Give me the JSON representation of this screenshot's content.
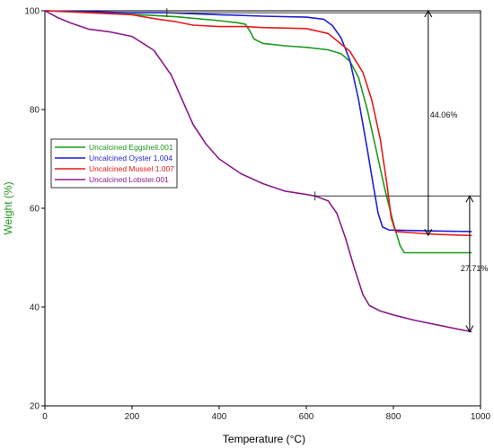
{
  "chart_data": {
    "type": "line",
    "xlabel": "Temperature (°C)",
    "ylabel": "Weight (%)",
    "xlim": [
      0,
      1000
    ],
    "ylim": [
      20,
      100
    ],
    "xticks": [
      "0",
      "200",
      "400",
      "600",
      "800",
      "1000"
    ],
    "yticks": [
      "20",
      "40",
      "60",
      "80",
      "100"
    ],
    "grid": false,
    "legend_position": "left",
    "series": [
      {
        "name": "Uncalcined Eggshell.001",
        "color": "#1a9a1a",
        "points": [
          [
            0,
            100
          ],
          [
            100,
            99.7
          ],
          [
            200,
            99.3
          ],
          [
            300,
            98.8
          ],
          [
            400,
            98
          ],
          [
            440,
            97.6
          ],
          [
            460,
            97.3
          ],
          [
            470,
            96
          ],
          [
            480,
            94.3
          ],
          [
            500,
            93.4
          ],
          [
            550,
            92.9
          ],
          [
            600,
            92.6
          ],
          [
            650,
            92.1
          ],
          [
            680,
            91.3
          ],
          [
            700,
            89.8
          ],
          [
            720,
            86.5
          ],
          [
            740,
            80
          ],
          [
            760,
            72
          ],
          [
            780,
            64
          ],
          [
            800,
            57
          ],
          [
            815,
            52.5
          ],
          [
            825,
            51
          ],
          [
            850,
            51
          ],
          [
            900,
            51
          ],
          [
            980,
            51
          ]
        ]
      },
      {
        "name": "Uncalcined Oyster 1.004",
        "color": "#1f1fd6",
        "points": [
          [
            0,
            100
          ],
          [
            100,
            99.8
          ],
          [
            200,
            99.6
          ],
          [
            280,
            99.6
          ],
          [
            400,
            99.2
          ],
          [
            500,
            98.9
          ],
          [
            600,
            98.7
          ],
          [
            640,
            98.3
          ],
          [
            660,
            97
          ],
          [
            680,
            94.5
          ],
          [
            700,
            90
          ],
          [
            720,
            82
          ],
          [
            740,
            72
          ],
          [
            755,
            64
          ],
          [
            765,
            59
          ],
          [
            775,
            56.2
          ],
          [
            790,
            55.6
          ],
          [
            850,
            55.5
          ],
          [
            900,
            55.4
          ],
          [
            980,
            55.3
          ]
        ]
      },
      {
        "name": "Uncalcined Mussel 1.007",
        "color": "#e61a1a",
        "points": [
          [
            0,
            100
          ],
          [
            100,
            99.6
          ],
          [
            200,
            99.2
          ],
          [
            260,
            98.3
          ],
          [
            300,
            97.8
          ],
          [
            340,
            97.1
          ],
          [
            400,
            96.8
          ],
          [
            460,
            96.8
          ],
          [
            500,
            96.6
          ],
          [
            600,
            96.4
          ],
          [
            650,
            95.4
          ],
          [
            700,
            91.8
          ],
          [
            730,
            87.5
          ],
          [
            750,
            82
          ],
          [
            770,
            74
          ],
          [
            785,
            65
          ],
          [
            795,
            58
          ],
          [
            805,
            55.3
          ],
          [
            850,
            55
          ],
          [
            900,
            54.7
          ],
          [
            980,
            54.5
          ]
        ]
      },
      {
        "name": "Uncalcined Lobster.001",
        "color": "#8b1a8b",
        "points": [
          [
            0,
            100
          ],
          [
            30,
            98.6
          ],
          [
            60,
            97.5
          ],
          [
            100,
            96.3
          ],
          [
            150,
            95.7
          ],
          [
            200,
            94.8
          ],
          [
            250,
            92
          ],
          [
            290,
            87
          ],
          [
            320,
            81
          ],
          [
            340,
            77
          ],
          [
            370,
            73
          ],
          [
            400,
            70
          ],
          [
            450,
            67
          ],
          [
            500,
            65
          ],
          [
            550,
            63.5
          ],
          [
            600,
            62.8
          ],
          [
            620,
            62.5
          ],
          [
            650,
            61.5
          ],
          [
            670,
            59
          ],
          [
            690,
            54
          ],
          [
            710,
            48
          ],
          [
            730,
            42.5
          ],
          [
            745,
            40.3
          ],
          [
            770,
            39.2
          ],
          [
            800,
            38.4
          ],
          [
            850,
            37.3
          ],
          [
            900,
            36.4
          ],
          [
            950,
            35.5
          ],
          [
            980,
            35
          ]
        ]
      }
    ],
    "annotations": [
      {
        "text": "44.06%",
        "x": 880,
        "y_from": 100,
        "y_to": 54.5
      },
      {
        "text": "27.71%",
        "x": 975,
        "y_from": 62.5,
        "y_to": 35
      }
    ]
  }
}
